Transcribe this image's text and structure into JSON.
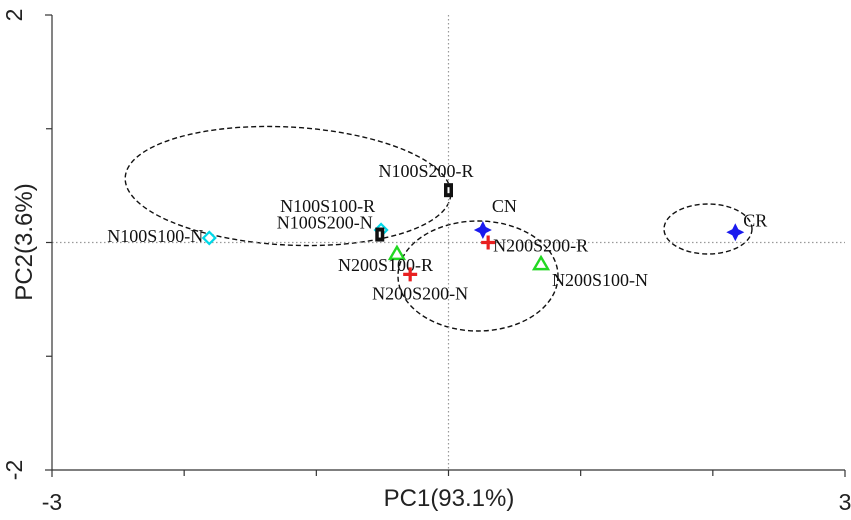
{
  "chart_data": {
    "type": "scatter",
    "x_label": "PC1(93.1%)",
    "y_label": "PC2(3.6%)",
    "xlim": [
      -3,
      3
    ],
    "ylim": [
      -2,
      2
    ],
    "xticks": [
      -3,
      3
    ],
    "yticks": [
      -2,
      2
    ],
    "xminorticks": [
      -2,
      -1,
      0,
      1,
      2
    ],
    "yminorticks": [
      -1,
      0,
      1
    ],
    "zero_lines": true,
    "series": [
      {
        "name": "N100S100-N",
        "color": "#00d8e8",
        "marker": "diamond",
        "x": [
          -1.81
        ],
        "y": [
          0.04
        ]
      },
      {
        "name": "N100S100-R",
        "color": "#00d8e8",
        "marker": "diamond",
        "x": [
          -0.51
        ],
        "y": [
          0.11
        ]
      },
      {
        "name": "N100S200-N",
        "color": "#111111",
        "marker": "square",
        "x": [
          -0.52
        ],
        "y": [
          0.07
        ]
      },
      {
        "name": "N100S200-R",
        "color": "#111111",
        "marker": "square",
        "x": [
          0.0
        ],
        "y": [
          0.46
        ]
      },
      {
        "name": "CN",
        "color": "#1a1aee",
        "marker": "star",
        "x": [
          0.26
        ],
        "y": [
          0.11
        ]
      },
      {
        "name": "N200S200-R",
        "color": "#e82020",
        "marker": "plus",
        "x": [
          0.3
        ],
        "y": [
          0.0
        ]
      },
      {
        "name": "N200S100-R",
        "color": "#22d822",
        "marker": "triangle",
        "x": [
          -0.39
        ],
        "y": [
          -0.1
        ]
      },
      {
        "name": "N200S200-N",
        "color": "#e82020",
        "marker": "plus",
        "x": [
          -0.29
        ],
        "y": [
          -0.28
        ]
      },
      {
        "name": "N200S100-N",
        "color": "#22d822",
        "marker": "triangle",
        "x": [
          0.7
        ],
        "y": [
          -0.19
        ]
      },
      {
        "name": "CR",
        "color": "#1a1aee",
        "marker": "star",
        "x": [
          2.17
        ],
        "y": [
          0.09
        ]
      }
    ]
  }
}
